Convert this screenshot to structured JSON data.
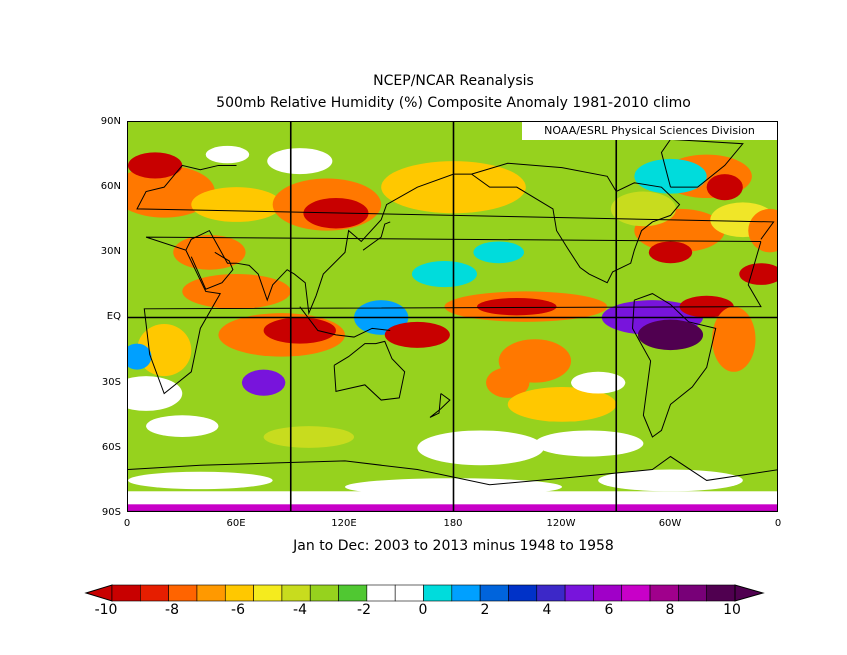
{
  "title_line1": "NCEP/NCAR Reanalysis",
  "title_line2": "500mb Relative Humidity (%) Composite Anomaly 1981-2010 climo",
  "credit": "NOAA/ESRL Physical Sciences Division",
  "subtitle": "Jan to Dec: 2003 to 2013 minus 1948 to 1958",
  "lat_labels": [
    "90N",
    "60N",
    "30N",
    "EQ",
    "30S",
    "60S",
    "90S"
  ],
  "lon_labels": [
    "0",
    "60E",
    "120E",
    "180",
    "120W",
    "60W",
    "0"
  ],
  "colorbar": {
    "labels": [
      "-10",
      "-8",
      "-6",
      "-4",
      "-2",
      "0",
      "2",
      "4",
      "6",
      "8",
      "10"
    ],
    "colors": [
      "#c80000",
      "#e61e00",
      "#ff6400",
      "#ff9900",
      "#ffc800",
      "#f5eb1e",
      "#c8dc1e",
      "#96d21e",
      "#50c832",
      "#ffffff",
      "#ffffff",
      "#00dcdc",
      "#00a0ff",
      "#0064dc",
      "#0032c8",
      "#3c28c8",
      "#7814dc",
      "#a000c8",
      "#c800c8",
      "#a0008c",
      "#780078",
      "#500050"
    ]
  },
  "palette": {
    "dark_red": "#c80000",
    "red": "#e61e00",
    "orange": "#ff7800",
    "gold": "#ffc800",
    "yellow": "#f0e628",
    "yellowgreen": "#c8dc1e",
    "green": "#96d21e",
    "deep_green": "#50c832",
    "white": "#ffffff",
    "cyan": "#00dcdc",
    "lightblue": "#00a0ff",
    "blue": "#0064dc",
    "purple": "#7814dc",
    "magenta": "#c800c8",
    "dark_purple": "#500050",
    "coast": "#000000"
  }
}
